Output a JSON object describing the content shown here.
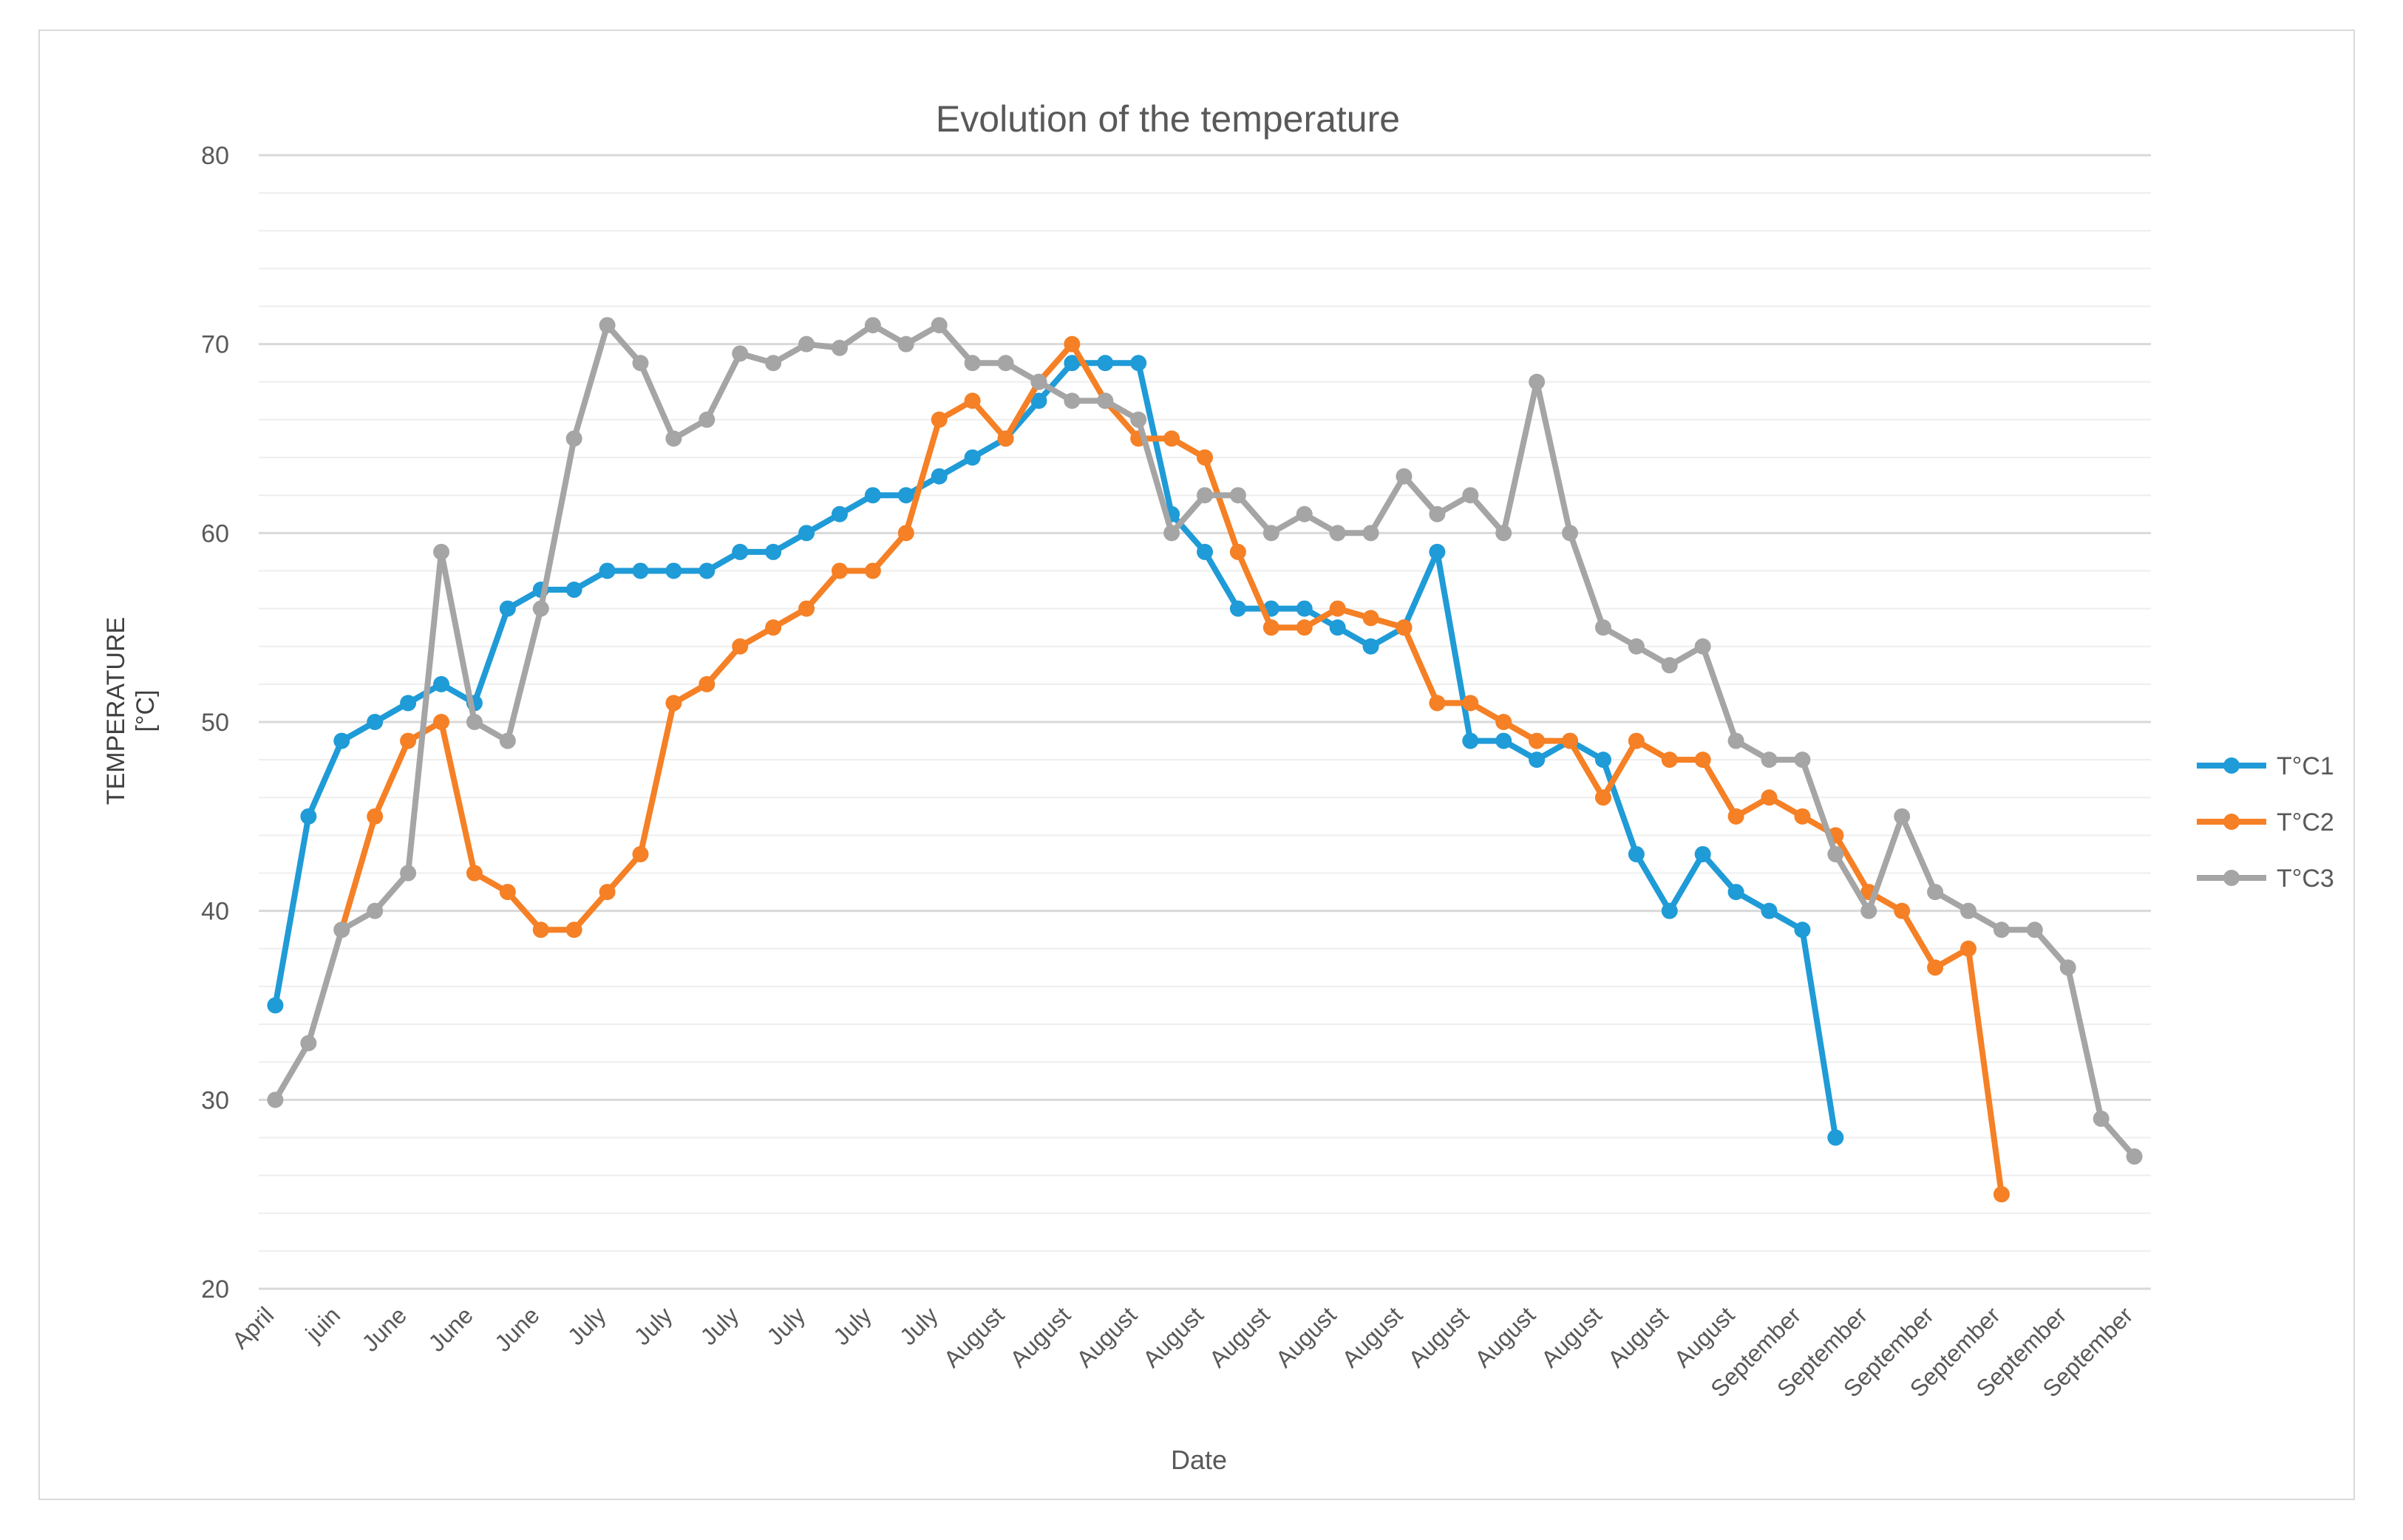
{
  "chart_data": {
    "type": "line",
    "title": "Evolution of the temperature",
    "xlabel": "Date",
    "ylabel_lines": [
      "TEMPERATURE",
      "[°C]"
    ],
    "ylim": [
      20,
      80
    ],
    "y_major_step": 10,
    "y_minor_step": 2,
    "grid": true,
    "legend_position": "right",
    "x_tick_labels": [
      "April",
      "juin",
      "June",
      "June",
      "June",
      "July",
      "July",
      "July",
      "July",
      "July",
      "July",
      "August",
      "August",
      "August",
      "August",
      "August",
      "August",
      "August",
      "August",
      "August",
      "August",
      "August",
      "August",
      "September",
      "September",
      "September",
      "September",
      "September",
      "September"
    ],
    "series": [
      {
        "name": "T°C1",
        "color": "#1f9bd7",
        "values": [
          35,
          45,
          49,
          50,
          51,
          52,
          51,
          56,
          57,
          57,
          58,
          58,
          58,
          58,
          59,
          59,
          60,
          61,
          62,
          62,
          63,
          64,
          65,
          67,
          69,
          69,
          69,
          61,
          59,
          56,
          56,
          56,
          55,
          54,
          55,
          59,
          49,
          49,
          48,
          49,
          48,
          43,
          40,
          43,
          41,
          40,
          39,
          28
        ]
      },
      {
        "name": "T°C2",
        "color": "#f58025",
        "values": [
          null,
          null,
          39,
          45,
          49,
          50,
          42,
          41,
          39,
          39,
          41,
          43,
          51,
          52,
          54,
          55,
          56,
          58,
          58,
          60,
          66,
          67,
          65,
          68,
          70,
          67,
          65,
          65,
          64,
          59,
          55,
          55,
          56,
          55.5,
          55,
          51,
          51,
          50,
          49,
          49,
          46,
          49,
          48,
          48,
          45,
          46,
          45,
          44,
          41,
          40,
          37,
          38,
          25
        ]
      },
      {
        "name": "T°C3",
        "color": "#a5a5a5",
        "values": [
          30,
          33,
          39,
          40,
          42,
          59,
          50,
          49,
          56,
          65,
          71,
          69,
          65,
          66,
          69.5,
          69,
          70,
          69.8,
          71,
          70,
          71,
          69,
          69,
          68,
          67,
          67,
          66,
          60,
          62,
          62,
          60,
          61,
          60,
          60,
          63,
          61,
          62,
          60,
          68,
          60,
          55,
          54,
          53,
          54,
          49,
          48,
          48,
          43,
          40,
          45,
          41,
          40,
          39,
          39,
          37,
          29,
          27
        ]
      }
    ]
  }
}
